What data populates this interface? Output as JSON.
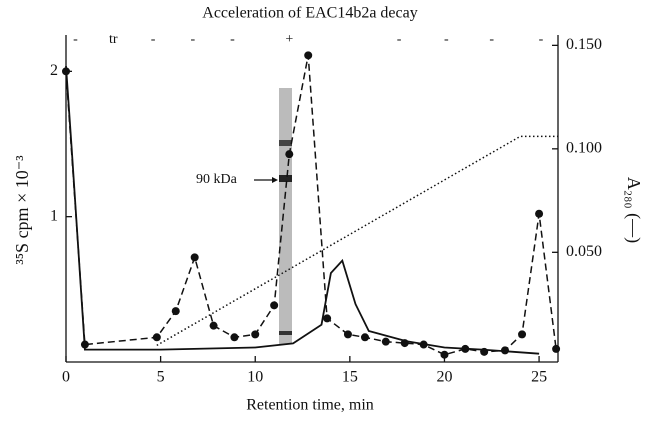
{
  "chart_data": {
    "type": "line",
    "title": "Acceleration of EAC14b2a decay",
    "x_label": "Retention time, min",
    "y_label": "³⁵S cpm × 10⁻³",
    "y2_label": "A₂₈₀ (—)",
    "annotation": "90 kDa",
    "fractions": {
      "labels": [
        "-",
        "tr",
        "-",
        "-",
        "-",
        "+",
        "-",
        "-",
        "-",
        "-"
      ],
      "x": [
        0.5,
        2.5,
        4.6,
        6.7,
        8.8,
        11.8,
        17.6,
        20.1,
        22.5,
        25.1
      ]
    },
    "xlim": [
      0,
      26
    ],
    "xticks": [
      0,
      5,
      10,
      15,
      20,
      25
    ],
    "ylim": [
      0,
      2.25
    ],
    "yticks": [
      1,
      2
    ],
    "y2lim": [
      -0.003,
      0.155
    ],
    "y2ticks": [
      {
        "value": 0.05,
        "label": "0.050"
      },
      {
        "value": 0.1,
        "label": "0.100"
      },
      {
        "value": 0.15,
        "label": "0.150"
      }
    ],
    "series": [
      {
        "color": "#111",
        "style": "dashed",
        "markers": true,
        "x": [
          0,
          1,
          4.8,
          5.8,
          6.8,
          7.8,
          8.9,
          10,
          11,
          11.8,
          12.8,
          13.8,
          14.9,
          15.8,
          16.9,
          17.9,
          18.9,
          20,
          21.1,
          22.1,
          23.2,
          24.1,
          25,
          25.9
        ],
        "values": [
          2.0,
          0.12,
          0.17,
          0.35,
          0.72,
          0.25,
          0.17,
          0.19,
          0.39,
          1.43,
          2.11,
          0.3,
          0.19,
          0.17,
          0.14,
          0.13,
          0.12,
          0.05,
          0.09,
          0.07,
          0.08,
          0.19,
          1.02,
          0.09
        ]
      },
      {
        "color": "#111",
        "style": "solid",
        "markers": false,
        "axis": "y2",
        "x": [
          0,
          0.3,
          1,
          5,
          10,
          12,
          13.5,
          14,
          14.6,
          15.3,
          16,
          18,
          20,
          22,
          25
        ],
        "values": [
          0.14,
          0.1,
          0.003,
          0.003,
          0.004,
          0.006,
          0.015,
          0.04,
          0.046,
          0.025,
          0.012,
          0.007,
          0.004,
          0.003,
          0.001
        ]
      },
      {
        "color": "#111",
        "style": "dotted",
        "markers": false,
        "axis": "y2",
        "x": [
          4.8,
          24,
          26
        ],
        "values": [
          0.005,
          0.106,
          0.106
        ]
      }
    ]
  }
}
